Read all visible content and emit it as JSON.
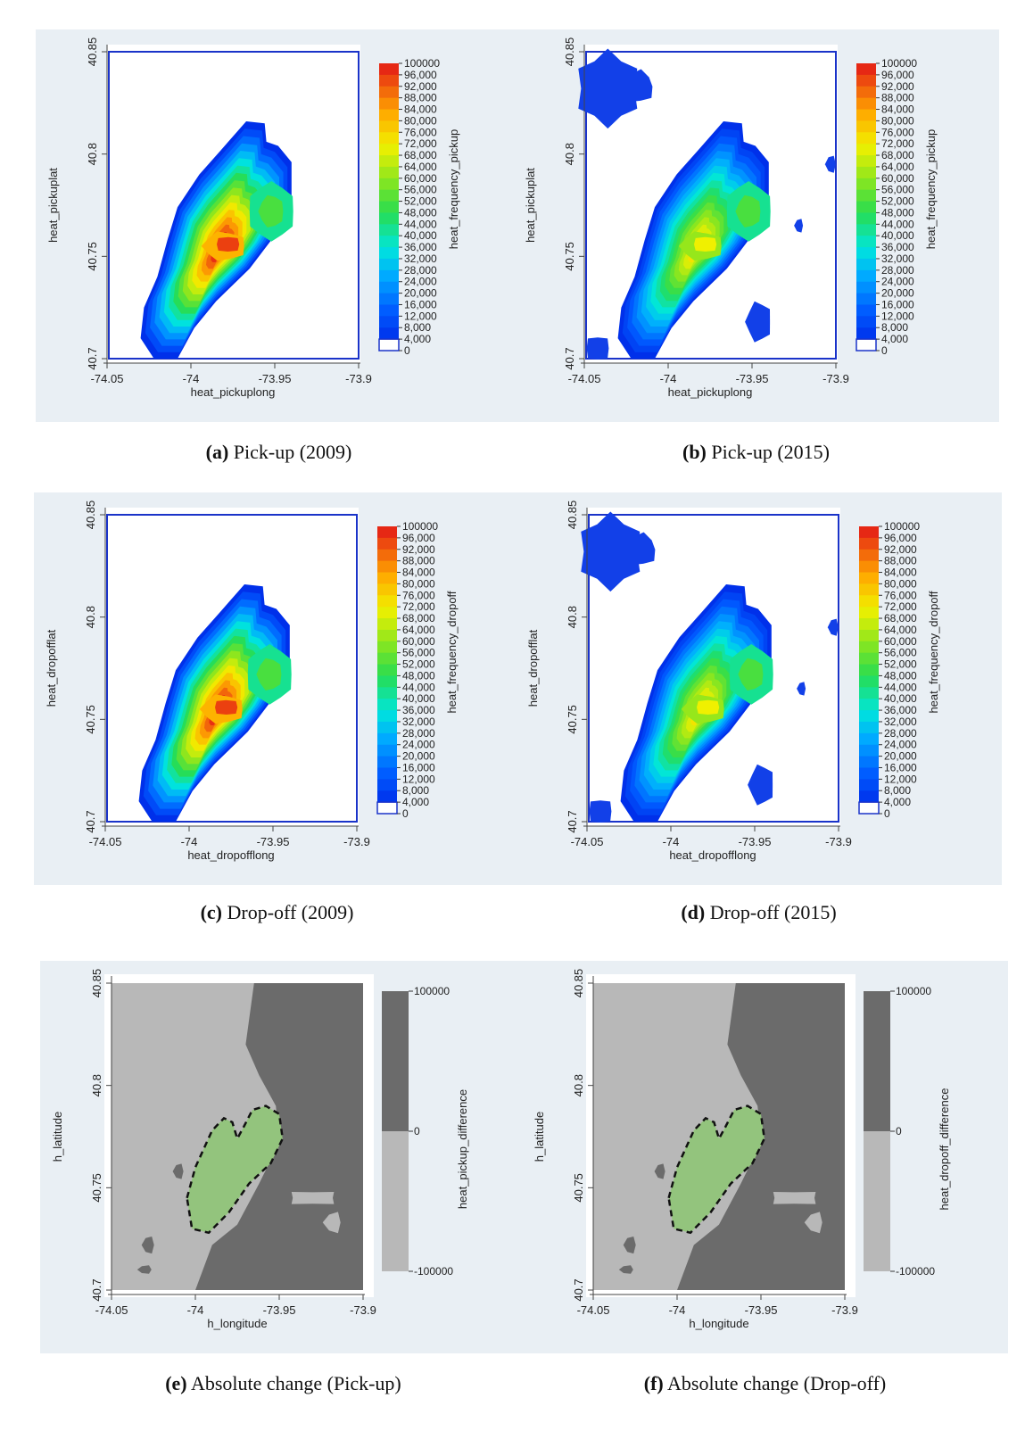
{
  "figure": {
    "panels": [
      {
        "id": "a",
        "caption_letter": "(a)",
        "caption_text": "Pick-up (2009)"
      },
      {
        "id": "b",
        "caption_letter": "(b)",
        "caption_text": "Pick-up (2015)"
      },
      {
        "id": "c",
        "caption_letter": "(c)",
        "caption_text": "Drop-off (2009)"
      },
      {
        "id": "d",
        "caption_letter": "(d)",
        "caption_text": "Drop-off (2015)"
      },
      {
        "id": "e",
        "caption_letter": "(e)",
        "caption_text": "Absolute change (Pick-up)"
      },
      {
        "id": "f",
        "caption_letter": "(f)",
        "caption_text": "Absolute change (Drop-off)"
      }
    ]
  },
  "chart_data": [
    {
      "type": "heatmap",
      "xlabel": "heat_pickuplong",
      "ylabel": "heat_pickuplat",
      "colorbar_label": "heat_frequency_pickup",
      "xlim": [
        -74.05,
        -73.9
      ],
      "ylim": [
        40.7,
        40.85
      ],
      "x_ticks": [
        "-74.05",
        "-74",
        "-73.95",
        "-73.9"
      ],
      "y_ticks": [
        "40.7",
        "40.75",
        "40.8",
        "40.85"
      ],
      "colorbar_ticks": [
        "100000",
        "96,000",
        "92,000",
        "88,000",
        "84,000",
        "80,000",
        "76,000",
        "72,000",
        "68,000",
        "64,000",
        "60,000",
        "56,000",
        "52,000",
        "48,000",
        "44,000",
        "40,000",
        "36,000",
        "32,000",
        "28,000",
        "24,000",
        "20,000",
        "16,000",
        "12,000",
        "8,000",
        "4,000",
        "0"
      ],
      "hotspot": {
        "x": -73.98,
        "y": 40.755,
        "peak": "approx 96,000"
      },
      "outer_patches": false
    },
    {
      "type": "heatmap",
      "xlabel": "heat_pickuplong",
      "ylabel": "heat_pickuplat",
      "colorbar_label": "heat_frequency_pickup",
      "xlim": [
        -74.05,
        -73.9
      ],
      "ylim": [
        40.7,
        40.85
      ],
      "x_ticks": [
        "-74.05",
        "-74",
        "-73.95",
        "-73.9"
      ],
      "y_ticks": [
        "40.7",
        "40.75",
        "40.8",
        "40.85"
      ],
      "colorbar_ticks": [
        "100000",
        "96,000",
        "92,000",
        "88,000",
        "84,000",
        "80,000",
        "76,000",
        "72,000",
        "68,000",
        "64,000",
        "60,000",
        "56,000",
        "52,000",
        "48,000",
        "44,000",
        "40,000",
        "36,000",
        "32,000",
        "28,000",
        "24,000",
        "20,000",
        "16,000",
        "12,000",
        "8,000",
        "4,000",
        "0"
      ],
      "hotspot": {
        "x": -73.98,
        "y": 40.755,
        "peak": "approx 72,000"
      },
      "outer_patches": true
    },
    {
      "type": "heatmap",
      "xlabel": "heat_dropofflong",
      "ylabel": "heat_dropofflat",
      "colorbar_label": "heat_frequency_dropoff",
      "xlim": [
        -74.05,
        -73.9
      ],
      "ylim": [
        40.7,
        40.85
      ],
      "x_ticks": [
        "-74.05",
        "-74",
        "-73.95",
        "-73.9"
      ],
      "y_ticks": [
        "40.7",
        "40.75",
        "40.8",
        "40.85"
      ],
      "colorbar_ticks": [
        "100000",
        "96,000",
        "92,000",
        "88,000",
        "84,000",
        "80,000",
        "76,000",
        "72,000",
        "68,000",
        "64,000",
        "60,000",
        "56,000",
        "52,000",
        "48,000",
        "44,000",
        "40,000",
        "36,000",
        "32,000",
        "28,000",
        "24,000",
        "20,000",
        "16,000",
        "12,000",
        "8,000",
        "4,000",
        "0"
      ],
      "hotspot": {
        "x": -73.98,
        "y": 40.755,
        "peak": "approx 92,000"
      },
      "outer_patches": false
    },
    {
      "type": "heatmap",
      "xlabel": "heat_dropofflong",
      "ylabel": "heat_dropofflat",
      "colorbar_label": "heat_frequency_dropoff",
      "xlim": [
        -74.05,
        -73.9
      ],
      "ylim": [
        40.7,
        40.85
      ],
      "x_ticks": [
        "-74.05",
        "-74",
        "-73.95",
        "-73.9"
      ],
      "y_ticks": [
        "40.7",
        "40.75",
        "40.8",
        "40.85"
      ],
      "colorbar_ticks": [
        "100000",
        "96,000",
        "92,000",
        "88,000",
        "84,000",
        "80,000",
        "76,000",
        "72,000",
        "68,000",
        "64,000",
        "60,000",
        "56,000",
        "52,000",
        "48,000",
        "44,000",
        "40,000",
        "36,000",
        "32,000",
        "28,000",
        "24,000",
        "20,000",
        "16,000",
        "12,000",
        "8,000",
        "4,000",
        "0"
      ],
      "hotspot": {
        "x": -73.98,
        "y": 40.755,
        "peak": "approx 72,000"
      },
      "outer_patches": true
    },
    {
      "type": "heatmap",
      "xlabel": "h_longitude",
      "ylabel": "h_latitude",
      "colorbar_label": "heat_pickup_difference",
      "xlim": [
        -74.05,
        -73.9
      ],
      "ylim": [
        40.7,
        40.85
      ],
      "x_ticks": [
        "-74.05",
        "-74",
        "-73.95",
        "-73.9"
      ],
      "y_ticks": [
        "40.7",
        "40.75",
        "40.8",
        "40.85"
      ],
      "colorbar_ticks": [
        "100000",
        "0",
        "-100000"
      ],
      "colors": {
        "positive": "#6b6b6b",
        "negative": "#b8b8b8",
        "highlight": "#93c47d"
      }
    },
    {
      "type": "heatmap",
      "xlabel": "h_longitude",
      "ylabel": "h_latitude",
      "colorbar_label": "heat_dropoff_difference",
      "xlim": [
        -74.05,
        -73.9
      ],
      "ylim": [
        40.7,
        40.85
      ],
      "x_ticks": [
        "-74.05",
        "-74",
        "-73.95",
        "-73.9"
      ],
      "y_ticks": [
        "40.7",
        "40.75",
        "40.8",
        "40.85"
      ],
      "colorbar_ticks": [
        "100000",
        "0",
        "-100000"
      ],
      "colors": {
        "positive": "#6b6b6b",
        "negative": "#b8b8b8",
        "highlight": "#93c47d"
      }
    }
  ]
}
